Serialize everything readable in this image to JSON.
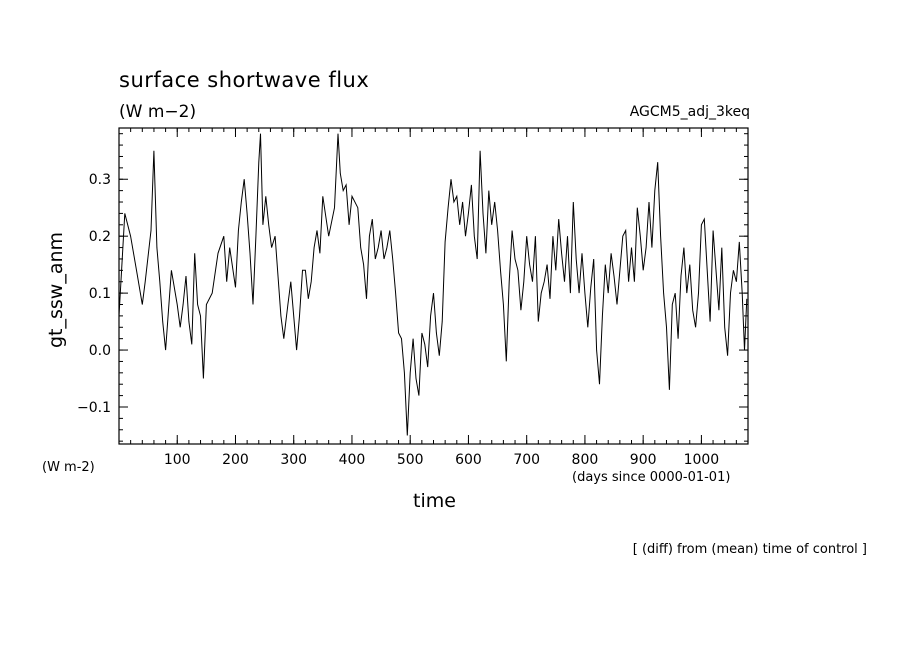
{
  "chart_data": {
    "type": "line",
    "title": "surface shortwave flux",
    "units": "(W m−2)",
    "run_label": "AGCM5_adj_3keq",
    "ylabel": "gt_ssw_anm",
    "yunit_label": "(W m-2)",
    "xlabel": "time",
    "xunit_label": "(days since 0000-01-01)",
    "note": "[ (diff) from (mean) time of control ]",
    "xlim": [
      0,
      1080
    ],
    "ylim": [
      -0.165,
      0.39
    ],
    "x_ticks": [
      100,
      200,
      300,
      400,
      500,
      600,
      700,
      800,
      900,
      1000
    ],
    "y_ticks": [
      -0.1,
      0.0,
      0.1,
      0.2,
      0.3
    ],
    "y_tick_labels": [
      "−0.1",
      "0.0",
      "0.1",
      "0.2",
      "0.3"
    ],
    "x_minor_step": 20,
    "y_minor_step": 0.02,
    "grid": false,
    "series": [
      {
        "points": [
          [
            0,
            0.06
          ],
          [
            10,
            0.24
          ],
          [
            20,
            0.2
          ],
          [
            30,
            0.14
          ],
          [
            40,
            0.08
          ],
          [
            45,
            0.12
          ],
          [
            55,
            0.21
          ],
          [
            60,
            0.35
          ],
          [
            65,
            0.18
          ],
          [
            70,
            0.12
          ],
          [
            75,
            0.05
          ],
          [
            80,
            0.0
          ],
          [
            85,
            0.07
          ],
          [
            90,
            0.14
          ],
          [
            100,
            0.08
          ],
          [
            105,
            0.04
          ],
          [
            110,
            0.08
          ],
          [
            115,
            0.13
          ],
          [
            120,
            0.05
          ],
          [
            125,
            0.01
          ],
          [
            130,
            0.17
          ],
          [
            135,
            0.08
          ],
          [
            140,
            0.06
          ],
          [
            145,
            -0.05
          ],
          [
            150,
            0.08
          ],
          [
            160,
            0.1
          ],
          [
            170,
            0.17
          ],
          [
            180,
            0.2
          ],
          [
            185,
            0.12
          ],
          [
            190,
            0.18
          ],
          [
            200,
            0.11
          ],
          [
            205,
            0.21
          ],
          [
            210,
            0.26
          ],
          [
            215,
            0.3
          ],
          [
            220,
            0.24
          ],
          [
            225,
            0.17
          ],
          [
            230,
            0.08
          ],
          [
            235,
            0.2
          ],
          [
            240,
            0.33
          ],
          [
            243,
            0.38
          ],
          [
            247,
            0.22
          ],
          [
            252,
            0.27
          ],
          [
            257,
            0.22
          ],
          [
            262,
            0.18
          ],
          [
            268,
            0.2
          ],
          [
            273,
            0.13
          ],
          [
            278,
            0.06
          ],
          [
            283,
            0.02
          ],
          [
            290,
            0.08
          ],
          [
            295,
            0.12
          ],
          [
            305,
            0.0
          ],
          [
            310,
            0.06
          ],
          [
            315,
            0.14
          ],
          [
            320,
            0.14
          ],
          [
            325,
            0.09
          ],
          [
            330,
            0.12
          ],
          [
            335,
            0.18
          ],
          [
            340,
            0.21
          ],
          [
            345,
            0.17
          ],
          [
            350,
            0.27
          ],
          [
            360,
            0.2
          ],
          [
            370,
            0.25
          ],
          [
            376,
            0.38
          ],
          [
            380,
            0.31
          ],
          [
            385,
            0.28
          ],
          [
            390,
            0.29
          ],
          [
            395,
            0.22
          ],
          [
            400,
            0.27
          ],
          [
            410,
            0.25
          ],
          [
            415,
            0.18
          ],
          [
            420,
            0.15
          ],
          [
            425,
            0.09
          ],
          [
            430,
            0.2
          ],
          [
            435,
            0.23
          ],
          [
            440,
            0.16
          ],
          [
            445,
            0.18
          ],
          [
            450,
            0.21
          ],
          [
            455,
            0.16
          ],
          [
            460,
            0.18
          ],
          [
            465,
            0.21
          ],
          [
            470,
            0.16
          ],
          [
            475,
            0.1
          ],
          [
            480,
            0.03
          ],
          [
            485,
            0.02
          ],
          [
            490,
            -0.04
          ],
          [
            495,
            -0.15
          ],
          [
            500,
            -0.04
          ],
          [
            505,
            0.02
          ],
          [
            510,
            -0.05
          ],
          [
            515,
            -0.08
          ],
          [
            520,
            0.03
          ],
          [
            525,
            0.01
          ],
          [
            530,
            -0.03
          ],
          [
            535,
            0.06
          ],
          [
            540,
            0.1
          ],
          [
            545,
            0.03
          ],
          [
            550,
            -0.01
          ],
          [
            555,
            0.05
          ],
          [
            560,
            0.19
          ],
          [
            565,
            0.25
          ],
          [
            570,
            0.3
          ],
          [
            575,
            0.26
          ],
          [
            580,
            0.27
          ],
          [
            585,
            0.22
          ],
          [
            590,
            0.26
          ],
          [
            595,
            0.2
          ],
          [
            600,
            0.24
          ],
          [
            605,
            0.29
          ],
          [
            610,
            0.2
          ],
          [
            615,
            0.16
          ],
          [
            620,
            0.35
          ],
          [
            625,
            0.24
          ],
          [
            630,
            0.17
          ],
          [
            635,
            0.28
          ],
          [
            640,
            0.22
          ],
          [
            645,
            0.26
          ],
          [
            650,
            0.21
          ],
          [
            655,
            0.14
          ],
          [
            660,
            0.08
          ],
          [
            665,
            -0.02
          ],
          [
            670,
            0.12
          ],
          [
            675,
            0.21
          ],
          [
            680,
            0.16
          ],
          [
            685,
            0.14
          ],
          [
            690,
            0.07
          ],
          [
            695,
            0.12
          ],
          [
            700,
            0.2
          ],
          [
            705,
            0.15
          ],
          [
            710,
            0.12
          ],
          [
            715,
            0.2
          ],
          [
            720,
            0.05
          ],
          [
            725,
            0.1
          ],
          [
            730,
            0.12
          ],
          [
            735,
            0.15
          ],
          [
            740,
            0.09
          ],
          [
            745,
            0.2
          ],
          [
            750,
            0.14
          ],
          [
            755,
            0.23
          ],
          [
            760,
            0.17
          ],
          [
            765,
            0.12
          ],
          [
            770,
            0.2
          ],
          [
            775,
            0.1
          ],
          [
            780,
            0.26
          ],
          [
            785,
            0.16
          ],
          [
            790,
            0.1
          ],
          [
            795,
            0.17
          ],
          [
            800,
            0.1
          ],
          [
            805,
            0.04
          ],
          [
            810,
            0.11
          ],
          [
            815,
            0.16
          ],
          [
            820,
            0.0
          ],
          [
            825,
            -0.06
          ],
          [
            830,
            0.06
          ],
          [
            835,
            0.15
          ],
          [
            840,
            0.1
          ],
          [
            845,
            0.17
          ],
          [
            850,
            0.13
          ],
          [
            855,
            0.08
          ],
          [
            860,
            0.14
          ],
          [
            865,
            0.2
          ],
          [
            870,
            0.21
          ],
          [
            875,
            0.12
          ],
          [
            880,
            0.18
          ],
          [
            885,
            0.12
          ],
          [
            890,
            0.25
          ],
          [
            895,
            0.2
          ],
          [
            900,
            0.14
          ],
          [
            905,
            0.18
          ],
          [
            910,
            0.26
          ],
          [
            915,
            0.18
          ],
          [
            920,
            0.28
          ],
          [
            925,
            0.33
          ],
          [
            930,
            0.2
          ],
          [
            935,
            0.1
          ],
          [
            940,
            0.04
          ],
          [
            945,
            -0.07
          ],
          [
            950,
            0.08
          ],
          [
            955,
            0.1
          ],
          [
            960,
            0.02
          ],
          [
            965,
            0.13
          ],
          [
            970,
            0.18
          ],
          [
            975,
            0.1
          ],
          [
            980,
            0.15
          ],
          [
            985,
            0.07
          ],
          [
            990,
            0.04
          ],
          [
            995,
            0.1
          ],
          [
            1000,
            0.22
          ],
          [
            1005,
            0.23
          ],
          [
            1010,
            0.14
          ],
          [
            1015,
            0.05
          ],
          [
            1020,
            0.21
          ],
          [
            1025,
            0.14
          ],
          [
            1030,
            0.07
          ],
          [
            1035,
            0.18
          ],
          [
            1040,
            0.04
          ],
          [
            1045,
            -0.01
          ],
          [
            1050,
            0.1
          ],
          [
            1055,
            0.14
          ],
          [
            1060,
            0.12
          ],
          [
            1065,
            0.19
          ],
          [
            1070,
            0.1
          ],
          [
            1074,
            0.0
          ],
          [
            1078,
            0.09
          ]
        ]
      }
    ]
  }
}
